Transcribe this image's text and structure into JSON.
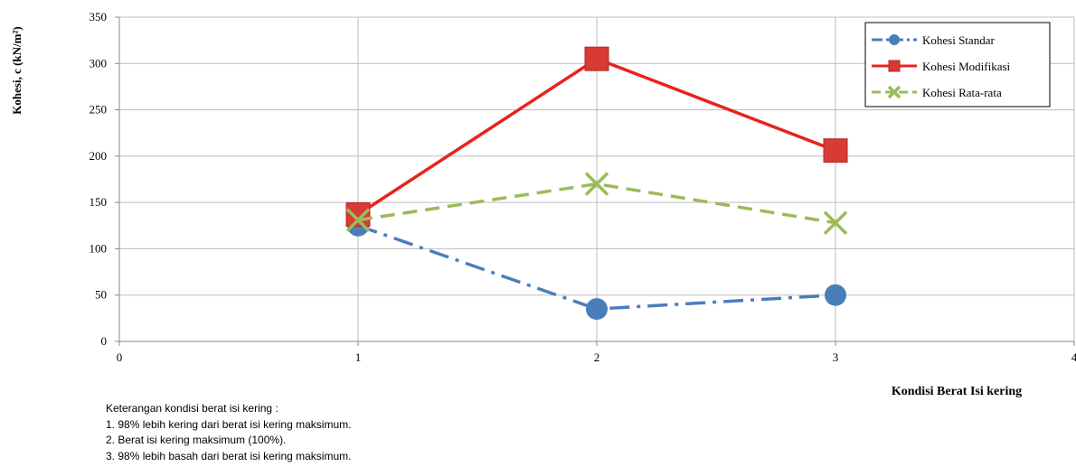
{
  "chart_data": {
    "type": "line",
    "x": [
      1,
      2,
      3
    ],
    "xlabel": "Kondisi  Berat Isi kering",
    "ylabel": "Kohesi, c (kN/m²)",
    "xlim": [
      0,
      4
    ],
    "ylim": [
      0,
      350
    ],
    "xticks": [
      "0",
      "1",
      "2",
      "3",
      "4"
    ],
    "yticks": [
      "0",
      "50",
      "100",
      "150",
      "200",
      "250",
      "300",
      "350"
    ],
    "grid": true,
    "legend_position": "top-right",
    "series": [
      {
        "name": "Kohesi Standar",
        "values": [
          125,
          35,
          50
        ],
        "color": "#4a7ebb",
        "marker": "circle",
        "line_style": "dash-dot"
      },
      {
        "name": "Kohesi Modifikasi",
        "values": [
          137,
          305,
          206
        ],
        "color": "#e8231c",
        "marker": "square",
        "line_style": "solid"
      },
      {
        "name": "Kohesi Rata-rata",
        "values": [
          131,
          170,
          128
        ],
        "color": "#9bbb59",
        "marker": "x",
        "line_style": "dashed"
      }
    ]
  },
  "notes": {
    "title": "Keterangan kondisi berat isi kering :",
    "items": [
      "1. 98% lebih kering dari berat isi kering maksimum.",
      "2. Berat  isi kering maksimum (100%).",
      "3. 98% lebih basah dari berat isi kering maksimum."
    ]
  }
}
